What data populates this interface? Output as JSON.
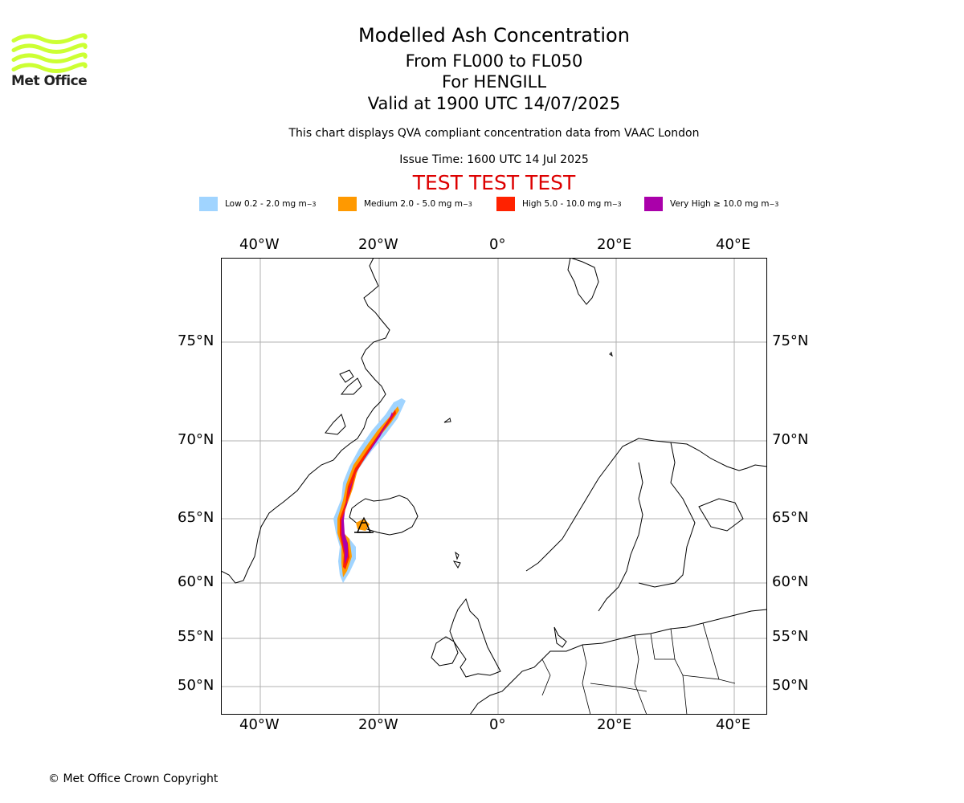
{
  "logo": {
    "text": "Met Office",
    "color": "#ccff33"
  },
  "titles": {
    "line1": "Modelled Ash Concentration",
    "line2": "From FL000 to FL050",
    "line3": "For HENGILL",
    "line4": "Valid at 1900 UTC 14/07/2025"
  },
  "subtitle": "This chart displays QVA compliant concentration data from VAAC London",
  "issue_time": "Issue Time: 1600 UTC 14 Jul 2025",
  "test_banner": {
    "text": "TEST TEST TEST",
    "color": "#dd0000"
  },
  "legend": [
    {
      "label": "Low 0.2 - 2.0 mg m",
      "sup": "−3",
      "color": "#a0d4ff"
    },
    {
      "label": "Medium 2.0 - 5.0 mg m",
      "sup": "−3",
      "color": "#ff9900"
    },
    {
      "label": "High 5.0 - 10.0 mg m",
      "sup": "−3",
      "color": "#ff2200"
    },
    {
      "label": "Very High  ≥  10.0 mg m",
      "sup": "−3",
      "color": "#aa00aa"
    }
  ],
  "axes": {
    "lon_labels": [
      "40°W",
      "20°W",
      "0°",
      "20°E",
      "40°E"
    ],
    "lat_labels": [
      "75°N",
      "70°N",
      "65°N",
      "60°N",
      "55°N",
      "50°N"
    ],
    "grid": true
  },
  "volcano_icon": "volcano-icon",
  "copyright": "© Met Office Crown Copyright"
}
